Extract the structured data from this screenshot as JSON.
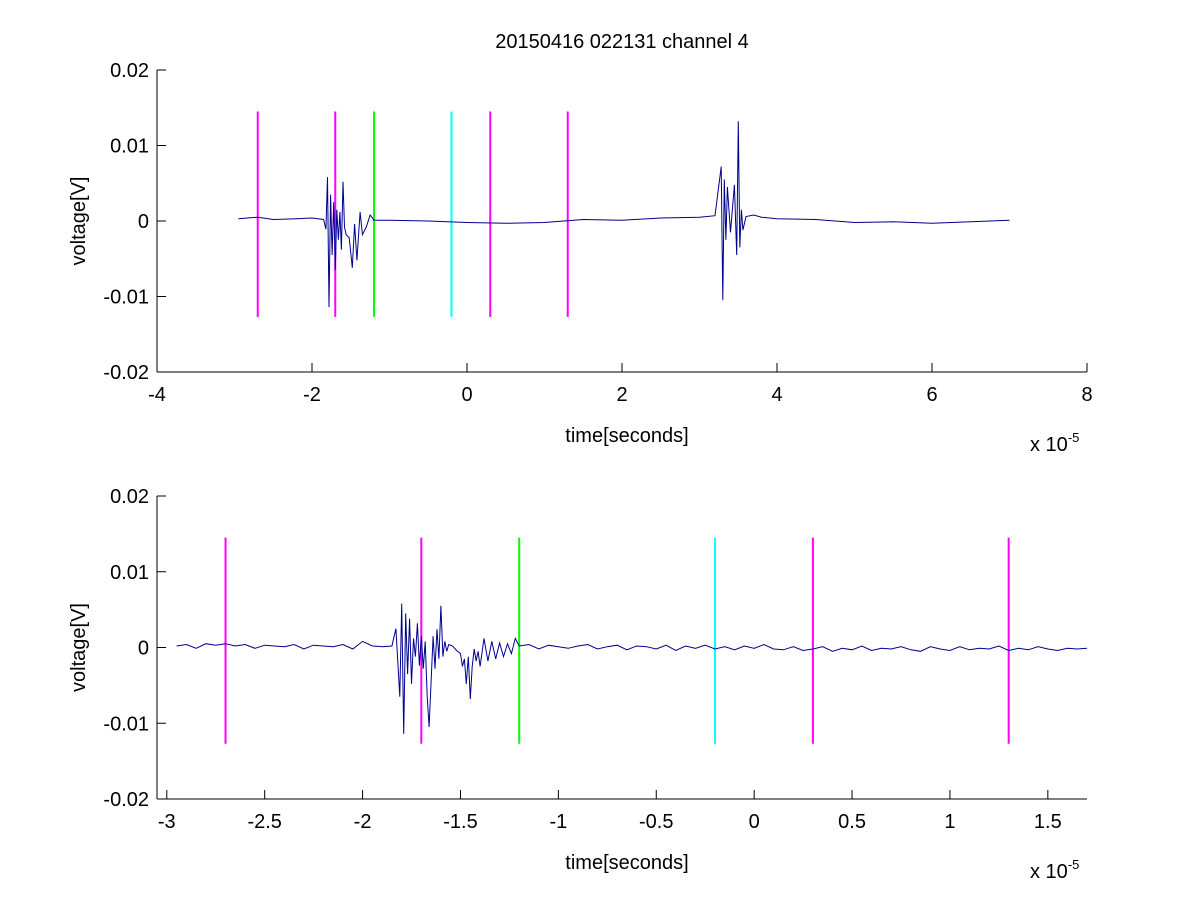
{
  "figure": {
    "title": "20150416 022131 channel 4"
  },
  "chart_data": [
    {
      "type": "line",
      "title": "20150416 022131 channel 4",
      "xlabel": "time[seconds]",
      "ylabel": "voltage[V]",
      "x_multiplier": "x 10",
      "x_multiplier_exponent": "-5",
      "x_scale": 1e-05,
      "xlim": [
        -4,
        8
      ],
      "ylim": [
        -0.02,
        0.02
      ],
      "x_ticks": [
        -4,
        -2,
        0,
        2,
        4,
        6,
        8
      ],
      "x_tick_labels": [
        "-4",
        "-2",
        "0",
        "2",
        "4",
        "6",
        "8"
      ],
      "y_ticks": [
        -0.02,
        -0.01,
        0,
        0.01,
        0.02
      ],
      "y_tick_labels": [
        "-0.02",
        "-0.01",
        "0",
        "0.01",
        "0.02"
      ],
      "grid": false,
      "series": [
        {
          "color": "#00008f",
          "x": [
            -2.95,
            -2.7,
            -2.5,
            -2.2,
            -2.0,
            -1.85,
            -1.82,
            -1.8,
            -1.78,
            -1.76,
            -1.74,
            -1.72,
            -1.7,
            -1.68,
            -1.66,
            -1.64,
            -1.62,
            -1.6,
            -1.58,
            -1.56,
            -1.52,
            -1.48,
            -1.45,
            -1.42,
            -1.38,
            -1.35,
            -1.3,
            -1.25,
            -1.2,
            -1.0,
            -0.5,
            0.0,
            0.5,
            1.0,
            1.5,
            2.0,
            2.5,
            3.0,
            3.2,
            3.28,
            3.3,
            3.32,
            3.34,
            3.36,
            3.4,
            3.45,
            3.48,
            3.5,
            3.52,
            3.54,
            3.56,
            3.6,
            3.7,
            3.8,
            4.0,
            4.5,
            5.0,
            5.5,
            6.0,
            6.5,
            7.0
          ],
          "y": [
            0.0003,
            0.0005,
            0.0002,
            0.0003,
            0.0004,
            0.0002,
            -0.0011,
            0.0058,
            -0.0114,
            0.0035,
            -0.0045,
            0.0025,
            -0.0065,
            0.0015,
            -0.0025,
            0.0012,
            -0.0038,
            0.0052,
            -0.0008,
            -0.0018,
            -0.0022,
            -0.0062,
            -0.0004,
            -0.0052,
            0.0012,
            -0.0018,
            -0.0008,
            0.0008,
            0.0001,
            0.0001,
            0.0,
            -0.0002,
            -0.0003,
            -0.0002,
            0.0002,
            0.0001,
            0.0004,
            0.0005,
            0.0007,
            0.0072,
            -0.0105,
            0.0055,
            -0.0025,
            0.0045,
            -0.0015,
            0.0048,
            -0.0045,
            0.0132,
            -0.0035,
            0.0015,
            -0.0012,
            0.0006,
            0.0008,
            0.0005,
            0.0003,
            0.0002,
            -0.0002,
            -0.0001,
            -0.0003,
            -0.0001,
            0.0001
          ]
        }
      ],
      "markers": [
        {
          "x": -2.7,
          "color": "#ff00ff",
          "y_range": [
            -0.0127,
            0.0145
          ]
        },
        {
          "x": -1.7,
          "color": "#ff00ff",
          "y_range": [
            -0.0127,
            0.0145
          ]
        },
        {
          "x": -1.2,
          "color": "#00ff00",
          "y_range": [
            -0.0127,
            0.0145
          ]
        },
        {
          "x": -0.2,
          "color": "#00ffff",
          "y_range": [
            -0.0127,
            0.0145
          ]
        },
        {
          "x": 0.3,
          "color": "#ff00ff",
          "y_range": [
            -0.0127,
            0.0145
          ]
        },
        {
          "x": 1.3,
          "color": "#ff00ff",
          "y_range": [
            -0.0127,
            0.0145
          ]
        }
      ]
    },
    {
      "type": "line",
      "title": "",
      "xlabel": "time[seconds]",
      "ylabel": "voltage[V]",
      "x_multiplier": "x 10",
      "x_multiplier_exponent": "-5",
      "x_scale": 1e-05,
      "xlim": [
        -3.05,
        1.7
      ],
      "ylim": [
        -0.02,
        0.02
      ],
      "x_ticks": [
        -3,
        -2.5,
        -2,
        -1.5,
        -1,
        -0.5,
        0,
        0.5,
        1,
        1.5
      ],
      "x_tick_labels": [
        "-3",
        "-2.5",
        "-2",
        "-1.5",
        "-1",
        "-0.5",
        "0",
        "0.5",
        "1",
        "1.5"
      ],
      "y_ticks": [
        -0.02,
        -0.01,
        0,
        0.01,
        0.02
      ],
      "y_tick_labels": [
        "-0.02",
        "-0.01",
        "0",
        "0.01",
        "0.02"
      ],
      "grid": false,
      "series": [
        {
          "color": "#00008f",
          "x": [
            -2.95,
            -2.9,
            -2.85,
            -2.8,
            -2.75,
            -2.7,
            -2.65,
            -2.6,
            -2.55,
            -2.5,
            -2.45,
            -2.4,
            -2.35,
            -2.3,
            -2.25,
            -2.2,
            -2.15,
            -2.1,
            -2.05,
            -2.0,
            -1.95,
            -1.9,
            -1.85,
            -1.83,
            -1.81,
            -1.8,
            -1.79,
            -1.78,
            -1.77,
            -1.76,
            -1.75,
            -1.74,
            -1.73,
            -1.72,
            -1.71,
            -1.7,
            -1.69,
            -1.68,
            -1.67,
            -1.66,
            -1.65,
            -1.64,
            -1.63,
            -1.62,
            -1.61,
            -1.6,
            -1.59,
            -1.58,
            -1.57,
            -1.56,
            -1.54,
            -1.52,
            -1.5,
            -1.49,
            -1.48,
            -1.47,
            -1.46,
            -1.45,
            -1.44,
            -1.43,
            -1.42,
            -1.41,
            -1.4,
            -1.38,
            -1.36,
            -1.34,
            -1.32,
            -1.3,
            -1.28,
            -1.26,
            -1.24,
            -1.22,
            -1.2,
            -1.15,
            -1.1,
            -1.05,
            -1.0,
            -0.95,
            -0.9,
            -0.85,
            -0.8,
            -0.75,
            -0.7,
            -0.65,
            -0.6,
            -0.55,
            -0.5,
            -0.45,
            -0.4,
            -0.35,
            -0.3,
            -0.25,
            -0.2,
            -0.15,
            -0.1,
            -0.05,
            0.0,
            0.05,
            0.1,
            0.15,
            0.2,
            0.25,
            0.3,
            0.35,
            0.4,
            0.45,
            0.5,
            0.55,
            0.6,
            0.65,
            0.7,
            0.75,
            0.8,
            0.85,
            0.9,
            0.95,
            1.0,
            1.05,
            1.1,
            1.15,
            1.2,
            1.25,
            1.3,
            1.35,
            1.4,
            1.45,
            1.5,
            1.55,
            1.6,
            1.65,
            1.7
          ],
          "y": [
            0.0002,
            0.0004,
            -0.0001,
            0.0005,
            0.0003,
            0.0005,
            0.0002,
            0.0004,
            -0.0001,
            0.0003,
            0.0002,
            0.0001,
            0.0004,
            -0.0002,
            0.0003,
            0.0002,
            0.0001,
            0.0004,
            -0.0002,
            0.0008,
            0.0002,
            0.0001,
            0.0002,
            0.0025,
            -0.0065,
            0.0058,
            -0.0114,
            0.0045,
            -0.0035,
            0.0038,
            -0.0048,
            0.0012,
            -0.0012,
            0.0032,
            -0.0024,
            0.0015,
            -0.0028,
            0.0008,
            -0.0065,
            -0.0105,
            -0.0045,
            0.0015,
            -0.0028,
            0.0024,
            -0.0015,
            0.0055,
            -0.0012,
            0.0008,
            -0.0005,
            0.0004,
            0.0002,
            -0.0004,
            -0.0008,
            -0.0025,
            -0.0015,
            -0.0048,
            -0.0012,
            -0.0068,
            -0.0025,
            -0.0002,
            -0.0018,
            -0.0005,
            -0.0025,
            0.0012,
            -0.0018,
            0.0008,
            -0.0015,
            0.0006,
            -0.0012,
            0.0005,
            -0.0008,
            0.0012,
            0.0002,
            0.0004,
            -0.0002,
            0.0003,
            0.0001,
            -0.0001,
            0.0002,
            0.0004,
            -0.0002,
            0.0001,
            0.0003,
            -0.0003,
            0.0002,
            0.0001,
            -0.0002,
            0.0003,
            -0.0004,
            0.0002,
            -0.0001,
            0.0003,
            -0.0002,
            0.0001,
            -0.0003,
            0.0002,
            -0.0001,
            0.0004,
            -0.0002,
            -0.0003,
            0.0001,
            -0.0004,
            -0.0002,
            0.0001,
            -0.0005,
            -0.0001,
            -0.0003,
            0.0002,
            -0.0004,
            -0.0001,
            -0.0002,
            0.0001,
            -0.0003,
            -0.0005,
            0.0001,
            -0.0002,
            -0.0004,
            0.0001,
            -0.0003,
            -0.0001,
            -0.0002,
            0.0002,
            -0.0004,
            -0.0001,
            -0.0003,
            0.0001,
            -0.0002,
            -0.0004,
            -0.0001,
            -0.0002,
            -0.0001
          ]
        }
      ],
      "markers": [
        {
          "x": -2.7,
          "color": "#ff00ff",
          "y_range": [
            -0.0127,
            0.0145
          ]
        },
        {
          "x": -1.7,
          "color": "#ff00ff",
          "y_range": [
            -0.0127,
            0.0145
          ]
        },
        {
          "x": -1.2,
          "color": "#00ff00",
          "y_range": [
            -0.0127,
            0.0145
          ]
        },
        {
          "x": -0.2,
          "color": "#00ffff",
          "y_range": [
            -0.0127,
            0.0145
          ]
        },
        {
          "x": 0.3,
          "color": "#ff00ff",
          "y_range": [
            -0.0127,
            0.0145
          ]
        },
        {
          "x": 1.3,
          "color": "#ff00ff",
          "y_range": [
            -0.0127,
            0.0145
          ]
        }
      ]
    }
  ]
}
